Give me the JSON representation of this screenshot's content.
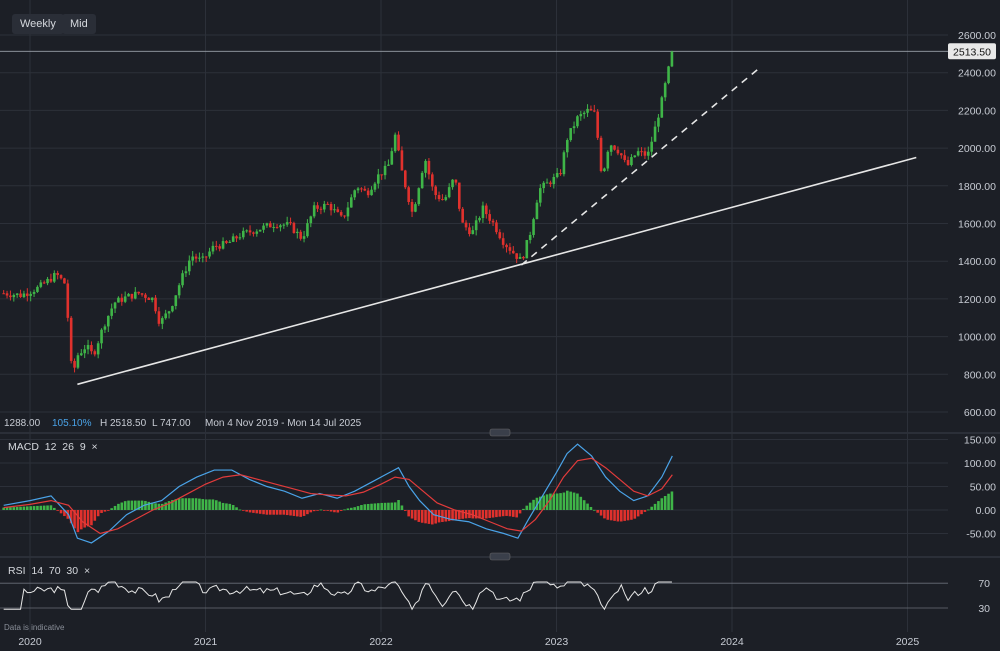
{
  "toolbar": {
    "timeframe": "Weekly",
    "price_mode": "Mid"
  },
  "info": {
    "prev": "1288.00",
    "change": "105.10%",
    "high": "H 2518.50",
    "low": "L 747.00",
    "range": "Mon 4 Nov 2019 - Mon 14 Jul 2025"
  },
  "macd": {
    "label": "MACD",
    "p1": "12",
    "p2": "26",
    "p3": "9",
    "close": "×"
  },
  "rsi": {
    "label": "RSI",
    "p1": "14",
    "p2": "70",
    "p3": "30",
    "close": "×"
  },
  "footer": {
    "note": "Data is indicative"
  },
  "colors": {
    "up": "#3fb548",
    "down": "#e0312d",
    "macd_line": "#4aa3e8",
    "signal_line": "#e23b3b",
    "trend": "#e6e6e6"
  },
  "chart_data": {
    "type": "candlestick",
    "last_price": 2513.5,
    "last_price_label": "2513.50",
    "price_axis": {
      "ticks": [
        600,
        800,
        1000,
        1200,
        1400,
        1600,
        1800,
        2000,
        2200,
        2400,
        2600
      ],
      "labels": [
        "600.00",
        "800.00",
        "1000.00",
        "1200.00",
        "1400.00",
        "1600.00",
        "1800.00",
        "2000.00",
        "2200.00",
        "2400.00",
        "2600.00"
      ]
    },
    "x_axis": {
      "labels": [
        "2020",
        "2021",
        "2022",
        "2023",
        "2024",
        "2025"
      ],
      "years": [
        2020,
        2021,
        2022,
        2023,
        2024,
        2025
      ]
    },
    "prices": [
      [
        2019.85,
        1230
      ],
      [
        2019.95,
        1220
      ],
      [
        2020.05,
        1260
      ],
      [
        2020.15,
        1330
      ],
      [
        2020.2,
        1280
      ],
      [
        2020.22,
        1050
      ],
      [
        2020.24,
        780
      ],
      [
        2020.27,
        900
      ],
      [
        2020.32,
        950
      ],
      [
        2020.36,
        900
      ],
      [
        2020.42,
        1060
      ],
      [
        2020.48,
        1180
      ],
      [
        2020.55,
        1210
      ],
      [
        2020.62,
        1230
      ],
      [
        2020.7,
        1200
      ],
      [
        2020.74,
        1070
      ],
      [
        2020.8,
        1150
      ],
      [
        2020.86,
        1300
      ],
      [
        2020.92,
        1430
      ],
      [
        2020.98,
        1400
      ],
      [
        2021.05,
        1480
      ],
      [
        2021.12,
        1490
      ],
      [
        2021.2,
        1540
      ],
      [
        2021.3,
        1570
      ],
      [
        2021.4,
        1600
      ],
      [
        2021.48,
        1590
      ],
      [
        2021.55,
        1520
      ],
      [
        2021.62,
        1680
      ],
      [
        2021.7,
        1700
      ],
      [
        2021.78,
        1620
      ],
      [
        2021.86,
        1800
      ],
      [
        2021.92,
        1760
      ],
      [
        2021.98,
        1850
      ],
      [
        2022.04,
        1900
      ],
      [
        2022.08,
        2070
      ],
      [
        2022.12,
        1870
      ],
      [
        2022.18,
        1650
      ],
      [
        2022.25,
        1950
      ],
      [
        2022.3,
        1760
      ],
      [
        2022.36,
        1720
      ],
      [
        2022.42,
        1850
      ],
      [
        2022.46,
        1600
      ],
      [
        2022.52,
        1550
      ],
      [
        2022.58,
        1680
      ],
      [
        2022.64,
        1600
      ],
      [
        2022.7,
        1500
      ],
      [
        2022.76,
        1440
      ],
      [
        2022.8,
        1400
      ],
      [
        2022.85,
        1550
      ],
      [
        2022.9,
        1780
      ],
      [
        2022.96,
        1820
      ],
      [
        2023.02,
        1860
      ],
      [
        2023.06,
        2050
      ],
      [
        2023.12,
        2160
      ],
      [
        2023.18,
        2200
      ],
      [
        2023.22,
        2180
      ],
      [
        2023.26,
        1840
      ],
      [
        2023.3,
        2030
      ],
      [
        2023.36,
        1980
      ],
      [
        2023.4,
        1900
      ],
      [
        2023.46,
        1980
      ],
      [
        2023.52,
        1960
      ],
      [
        2023.56,
        2100
      ],
      [
        2023.6,
        2250
      ],
      [
        2023.63,
        2380
      ],
      [
        2023.66,
        2510
      ]
    ],
    "support_line": {
      "from": [
        2020.27,
        747
      ],
      "to": [
        2025.05,
        1950
      ]
    },
    "dashed_trend": {
      "from": [
        2022.8,
        1380
      ],
      "to": [
        2024.15,
        2420
      ]
    },
    "macd_axis": {
      "ticks": [
        -50,
        0,
        50,
        100,
        150
      ],
      "labels": [
        "-50.00",
        "0.00",
        "50.00",
        "100.00",
        "150.00"
      ]
    },
    "macd_series": [
      {
        "name": "MACD",
        "points": [
          [
            2019.85,
            10
          ],
          [
            2020.0,
            20
          ],
          [
            2020.12,
            30
          ],
          [
            2020.22,
            -10
          ],
          [
            2020.27,
            -60
          ],
          [
            2020.35,
            -70
          ],
          [
            2020.45,
            -45
          ],
          [
            2020.55,
            -10
          ],
          [
            2020.65,
            10
          ],
          [
            2020.75,
            20
          ],
          [
            2020.85,
            50
          ],
          [
            2020.95,
            70
          ],
          [
            2021.05,
            85
          ],
          [
            2021.15,
            85
          ],
          [
            2021.25,
            65
          ],
          [
            2021.35,
            50
          ],
          [
            2021.45,
            40
          ],
          [
            2021.55,
            25
          ],
          [
            2021.65,
            35
          ],
          [
            2021.75,
            25
          ],
          [
            2021.85,
            40
          ],
          [
            2021.95,
            60
          ],
          [
            2022.05,
            80
          ],
          [
            2022.1,
            90
          ],
          [
            2022.16,
            50
          ],
          [
            2022.22,
            20
          ],
          [
            2022.3,
            -10
          ],
          [
            2022.4,
            -20
          ],
          [
            2022.5,
            -25
          ],
          [
            2022.6,
            -40
          ],
          [
            2022.7,
            -50
          ],
          [
            2022.78,
            -60
          ],
          [
            2022.84,
            -20
          ],
          [
            2022.92,
            30
          ],
          [
            2023.0,
            80
          ],
          [
            2023.06,
            120
          ],
          [
            2023.12,
            140
          ],
          [
            2023.2,
            115
          ],
          [
            2023.28,
            70
          ],
          [
            2023.36,
            40
          ],
          [
            2023.44,
            20
          ],
          [
            2023.52,
            30
          ],
          [
            2023.6,
            70
          ],
          [
            2023.66,
            115
          ]
        ]
      },
      {
        "name": "Signal",
        "points": [
          [
            2019.85,
            5
          ],
          [
            2020.0,
            12
          ],
          [
            2020.12,
            20
          ],
          [
            2020.22,
            10
          ],
          [
            2020.3,
            -25
          ],
          [
            2020.4,
            -50
          ],
          [
            2020.5,
            -40
          ],
          [
            2020.6,
            -20
          ],
          [
            2020.7,
            0
          ],
          [
            2020.8,
            15
          ],
          [
            2020.9,
            35
          ],
          [
            2021.0,
            55
          ],
          [
            2021.1,
            70
          ],
          [
            2021.2,
            75
          ],
          [
            2021.3,
            65
          ],
          [
            2021.4,
            55
          ],
          [
            2021.5,
            45
          ],
          [
            2021.6,
            35
          ],
          [
            2021.7,
            32
          ],
          [
            2021.8,
            30
          ],
          [
            2021.9,
            38
          ],
          [
            2022.0,
            55
          ],
          [
            2022.08,
            70
          ],
          [
            2022.16,
            65
          ],
          [
            2022.24,
            40
          ],
          [
            2022.32,
            15
          ],
          [
            2022.42,
            0
          ],
          [
            2022.52,
            -10
          ],
          [
            2022.62,
            -25
          ],
          [
            2022.72,
            -40
          ],
          [
            2022.8,
            -45
          ],
          [
            2022.88,
            -20
          ],
          [
            2022.96,
            20
          ],
          [
            2023.04,
            70
          ],
          [
            2023.12,
            105
          ],
          [
            2023.2,
            110
          ],
          [
            2023.28,
            90
          ],
          [
            2023.36,
            65
          ],
          [
            2023.44,
            40
          ],
          [
            2023.52,
            30
          ],
          [
            2023.6,
            45
          ],
          [
            2023.66,
            75
          ]
        ]
      }
    ],
    "rsi_axis": {
      "ticks": [
        30,
        70
      ],
      "labels": [
        "30",
        "70"
      ]
    }
  }
}
